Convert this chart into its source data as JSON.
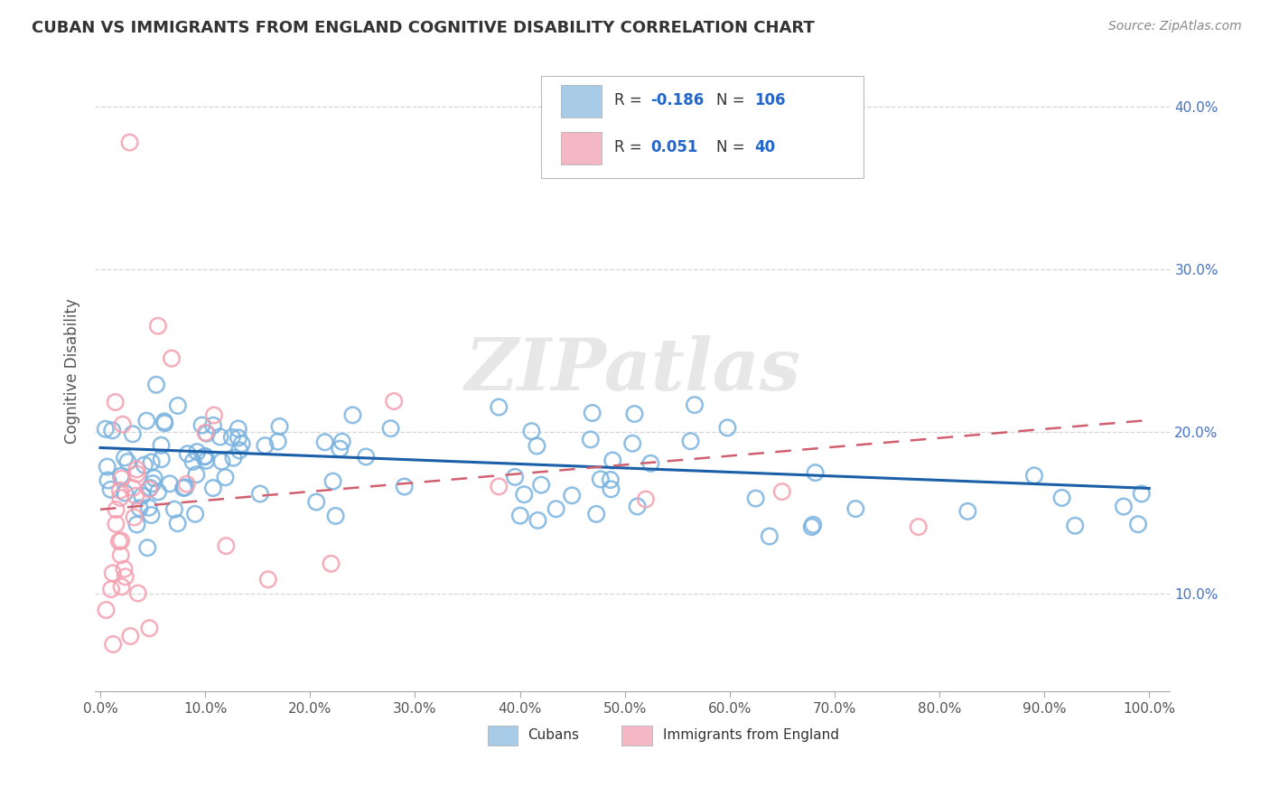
{
  "title": "CUBAN VS IMMIGRANTS FROM ENGLAND COGNITIVE DISABILITY CORRELATION CHART",
  "source": "Source: ZipAtlas.com",
  "ylabel": "Cognitive Disability",
  "blue_R": -0.186,
  "blue_N": 106,
  "pink_R": 0.051,
  "pink_N": 40,
  "blue_color": "#7ab3e0",
  "pink_color": "#f4a0b0",
  "blue_line_color": "#1a5fa8",
  "pink_line_color": "#d06070",
  "legend_blue_color": "#a8cce8",
  "legend_pink_color": "#f4b8c4",
  "watermark": "ZIPatlas",
  "background_color": "#ffffff",
  "grid_color": "#cccccc",
  "title_color": "#333333",
  "y_ticks": [
    0.1,
    0.2,
    0.3,
    0.4
  ],
  "x_ticks": [
    0.0,
    0.1,
    0.2,
    0.3,
    0.4,
    0.5,
    0.6,
    0.7,
    0.8,
    0.9,
    1.0
  ],
  "xlim": [
    -0.005,
    1.02
  ],
  "ylim": [
    0.04,
    0.435
  ]
}
